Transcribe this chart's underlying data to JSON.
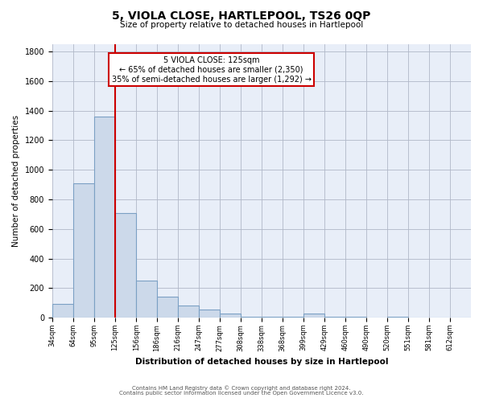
{
  "title": "5, VIOLA CLOSE, HARTLEPOOL, TS26 0QP",
  "subtitle": "Size of property relative to detached houses in Hartlepool",
  "xlabel": "Distribution of detached houses by size in Hartlepool",
  "ylabel": "Number of detached properties",
  "bar_color": "#ccd9ea",
  "bar_edge_color": "#7ba0c4",
  "vline_x": 125,
  "vline_color": "#cc0000",
  "annotation_title": "5 VIOLA CLOSE: 125sqm",
  "annotation_line1": "← 65% of detached houses are smaller (2,350)",
  "annotation_line2": "35% of semi-detached houses are larger (1,292) →",
  "annotation_box_color": "white",
  "annotation_box_edge": "#cc0000",
  "footer_line1": "Contains HM Land Registry data © Crown copyright and database right 2024.",
  "footer_line2": "Contains public sector information licensed under the Open Government Licence v3.0.",
  "bins": [
    34,
    64,
    95,
    125,
    156,
    186,
    216,
    247,
    277,
    308,
    338,
    368,
    399,
    429,
    460,
    490,
    520,
    551,
    581,
    612,
    642
  ],
  "counts": [
    90,
    910,
    1360,
    710,
    250,
    140,
    80,
    55,
    30,
    8,
    8,
    8,
    25,
    5,
    5,
    0,
    5,
    0,
    0,
    0
  ],
  "ylim": [
    0,
    1850
  ],
  "yticks": [
    0,
    200,
    400,
    600,
    800,
    1000,
    1200,
    1400,
    1600,
    1800
  ],
  "background_color": "#e8eef8"
}
